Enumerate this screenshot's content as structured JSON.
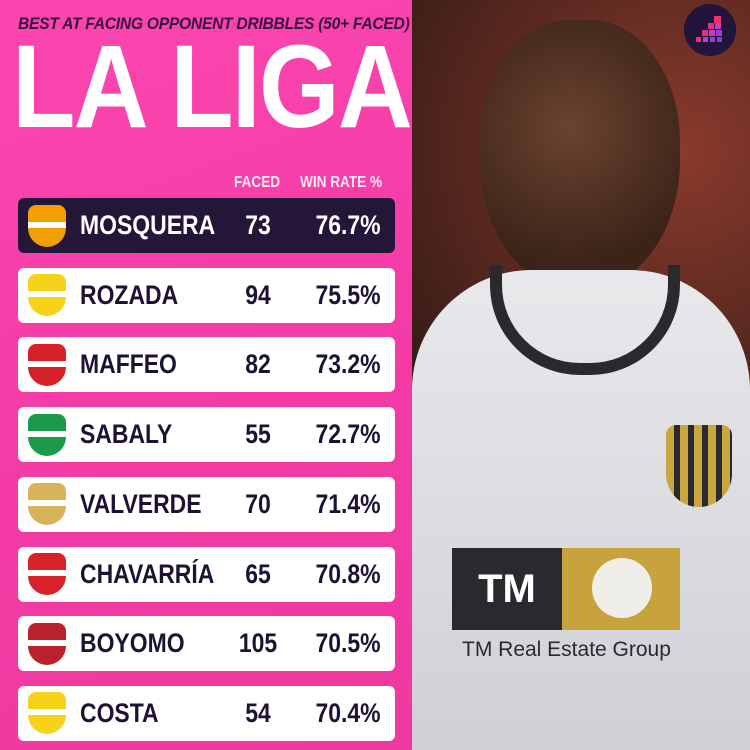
{
  "header": {
    "subtitle": "BEST AT FACING OPPONENT DRIBBLES (50+ FACED)",
    "title": "LA LIGA"
  },
  "columns": {
    "faced": "FACED",
    "win_rate": "WIN RATE %"
  },
  "rows": [
    {
      "name": "MOSQUERA",
      "faced": "73",
      "win_rate": "76.7%",
      "club": "valencia",
      "color": "#f2a000"
    },
    {
      "name": "ROZADA",
      "faced": "94",
      "win_rate": "75.5%",
      "club": "las-palmas",
      "color": "#f6d21a"
    },
    {
      "name": "MAFFEO",
      "faced": "82",
      "win_rate": "73.2%",
      "club": "mallorca",
      "color": "#d6202a"
    },
    {
      "name": "SABALY",
      "faced": "55",
      "win_rate": "72.7%",
      "club": "real-betis",
      "color": "#1a9a4a"
    },
    {
      "name": "VALVERDE",
      "faced": "70",
      "win_rate": "71.4%",
      "club": "real-madrid",
      "color": "#d7b35a"
    },
    {
      "name": "CHAVARRÍA",
      "faced": "65",
      "win_rate": "70.8%",
      "club": "rayo-vallecano",
      "color": "#d8222a"
    },
    {
      "name": "BOYOMO",
      "faced": "105",
      "win_rate": "70.5%",
      "club": "osasuna",
      "color": "#b8222a"
    },
    {
      "name": "COSTA",
      "faced": "54",
      "win_rate": "70.4%",
      "club": "villarreal",
      "color": "#f6d21a"
    }
  ],
  "photo": {
    "sponsor_mark": "TM",
    "sponsor_text": "TM Real Estate Group"
  },
  "colors": {
    "background": "#f33aa4",
    "highlight_row": "#241638",
    "row": "#ffffff"
  }
}
